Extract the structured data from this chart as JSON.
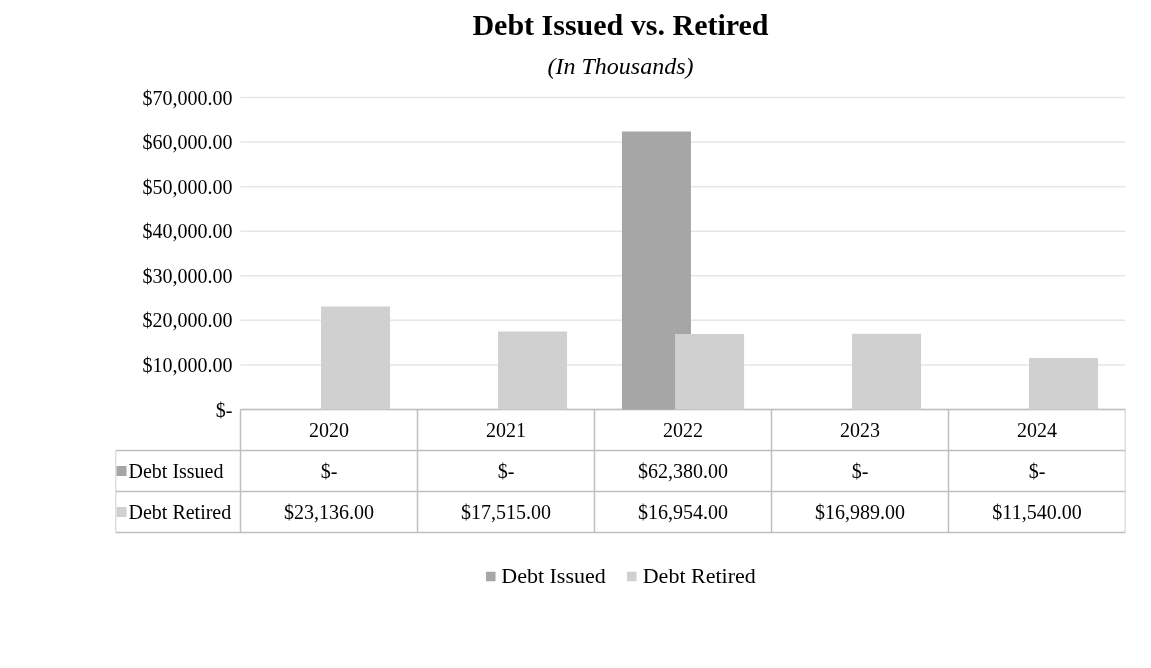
{
  "chart_data": {
    "type": "bar",
    "title": "Debt Issued vs. Retired",
    "subtitle": "(In Thousands)",
    "categories": [
      "2020",
      "2021",
      "2022",
      "2023",
      "2024"
    ],
    "series": [
      {
        "name": "Debt Issued",
        "color": "#a6a6a6",
        "values": [
          0,
          0,
          62380,
          0,
          0
        ],
        "value_labels": [
          "$-",
          "$-",
          "$62,380.00",
          "$-",
          "$-"
        ]
      },
      {
        "name": "Debt Retired",
        "color": "#d0d0d0",
        "values": [
          23136,
          17515,
          16954,
          16989,
          11540
        ],
        "value_labels": [
          "$23,136.00",
          "$17,515.00",
          "$16,954.00",
          "$16,989.00",
          "$11,540.00"
        ]
      }
    ],
    "ylim": [
      0,
      70000
    ],
    "yticks": [
      {
        "value": 0,
        "label": "$-"
      },
      {
        "value": 10000,
        "label": "$10,000.00"
      },
      {
        "value": 20000,
        "label": "$20,000.00"
      },
      {
        "value": 30000,
        "label": "$30,000.00"
      },
      {
        "value": 40000,
        "label": "$40,000.00"
      },
      {
        "value": 50000,
        "label": "$50,000.00"
      },
      {
        "value": 60000,
        "label": "$60,000.00"
      },
      {
        "value": 70000,
        "label": "$70,000.00"
      }
    ],
    "grid": "y",
    "legend": "bottom"
  }
}
